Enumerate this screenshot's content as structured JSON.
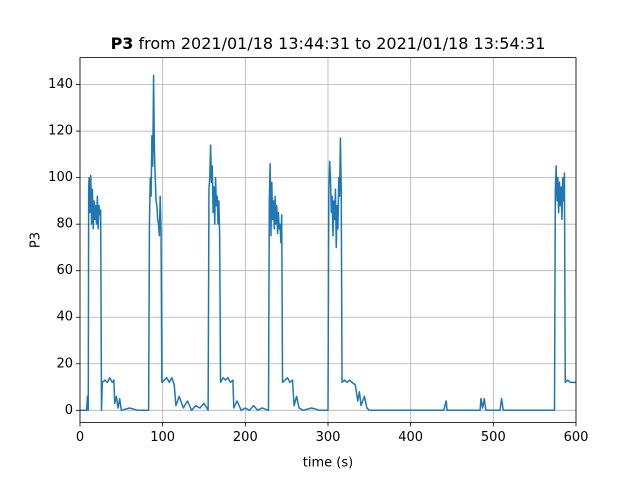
{
  "chart_data": {
    "type": "line",
    "title": [
      "P3",
      "from 2021/01/18 13:44:31 to 2021/01/18 13:54:31"
    ],
    "xlabel": "time (s)",
    "ylabel": "P3",
    "xlim": [
      0,
      600
    ],
    "xticks": [
      0,
      100,
      200,
      300,
      400,
      500,
      600
    ],
    "ylim": [
      -5.2,
      151.6
    ],
    "yticks": [
      0,
      20,
      40,
      60,
      80,
      100,
      120,
      140
    ],
    "grid": true,
    "series": [
      {
        "name": "P3",
        "color": "#1f77b4",
        "x": [
          0,
          8,
          9,
          10,
          10.5,
          11,
          12,
          13,
          14,
          15,
          16,
          17,
          18,
          19,
          20,
          21,
          22,
          23,
          24,
          25,
          26,
          27,
          30,
          33,
          36,
          39,
          41,
          42,
          44,
          46,
          48,
          50,
          60,
          70,
          83,
          84,
          85,
          86,
          87,
          88,
          89,
          90,
          91,
          92,
          93,
          94,
          95,
          96,
          97,
          98,
          99,
          102,
          105,
          108,
          111,
          114,
          116,
          120,
          125,
          130,
          135,
          140,
          145,
          150,
          155,
          156,
          157,
          158,
          159,
          160,
          161,
          162,
          163,
          164,
          165,
          166,
          167,
          168,
          169,
          170,
          173,
          176,
          179,
          182,
          185,
          186,
          190,
          195,
          200,
          205,
          210,
          215,
          220,
          228,
          229,
          230,
          231,
          232,
          233,
          234,
          235,
          236,
          237,
          238,
          239,
          240,
          241,
          242,
          243,
          244,
          245,
          248,
          251,
          254,
          257,
          259,
          262,
          265,
          270,
          280,
          290,
          300,
          301,
          302,
          303,
          304,
          305,
          306,
          307,
          308,
          309,
          310,
          311,
          312,
          313,
          314,
          315,
          316,
          317,
          320,
          323,
          326,
          329,
          333,
          336,
          338,
          340,
          344,
          347,
          350,
          440,
          443,
          444,
          484,
          485,
          487,
          489,
          491,
          508,
          510,
          512,
          574,
          575,
          576,
          577,
          578,
          579,
          580,
          581,
          582,
          583,
          584,
          585,
          586,
          587,
          590,
          593,
          596,
          600
        ],
        "values": [
          0,
          0,
          6,
          0,
          95,
          100,
          85,
          101,
          80,
          95,
          78,
          90,
          82,
          88,
          80,
          92,
          78,
          88,
          84,
          86,
          0,
          12,
          13,
          12,
          14,
          12,
          13,
          3,
          6,
          1,
          5,
          0,
          1,
          0,
          0,
          80,
          100,
          92,
          118,
          105,
          144,
          112,
          100,
          90,
          88,
          82,
          80,
          75,
          92,
          78,
          12,
          13,
          14,
          12,
          14,
          11,
          2,
          6,
          1,
          4,
          0,
          2,
          1,
          3,
          0,
          95,
          100,
          114,
          98,
          105,
          85,
          96,
          80,
          100,
          88,
          92,
          80,
          90,
          74,
          12,
          14,
          13,
          14,
          12,
          13,
          1,
          4,
          0,
          1,
          0,
          2,
          0,
          1,
          0,
          90,
          106,
          75,
          98,
          82,
          90,
          78,
          92,
          80,
          88,
          76,
          85,
          78,
          80,
          72,
          84,
          12,
          13,
          14,
          12,
          13,
          2,
          6,
          1,
          0,
          1,
          0,
          0,
          95,
          107,
          100,
          85,
          92,
          75,
          90,
          82,
          95,
          70,
          88,
          78,
          100,
          92,
          117,
          95,
          12,
          13,
          12,
          13,
          12,
          11,
          4,
          8,
          2,
          6,
          1,
          0,
          0,
          4,
          0,
          0,
          5,
          1,
          5,
          0,
          0,
          5,
          0,
          0,
          95,
          105,
          90,
          100,
          85,
          98,
          88,
          96,
          82,
          100,
          90,
          102,
          12,
          13,
          12,
          12,
          12
        ]
      }
    ]
  }
}
